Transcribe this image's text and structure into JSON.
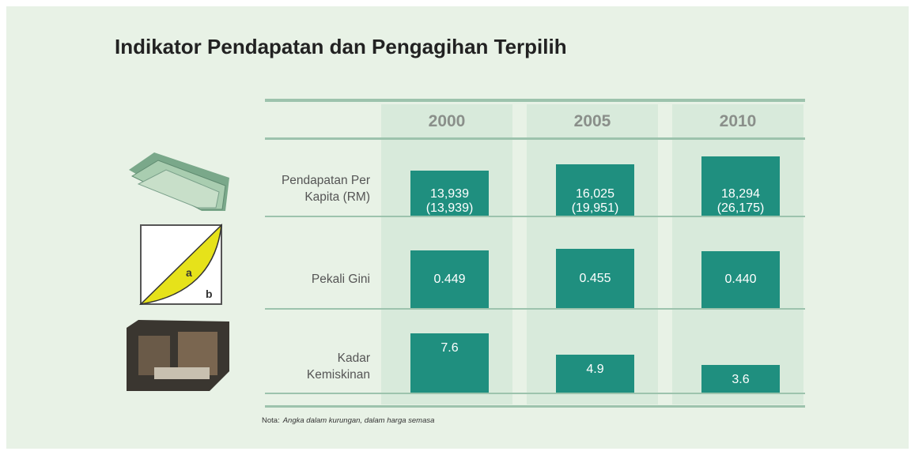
{
  "title": "Indikator Pendapatan dan Pengagihan Terpilih",
  "table": {
    "headers": [
      "2000",
      "2005",
      "2010"
    ],
    "rows": [
      {
        "label": [
          "Pendapatan Per",
          "Kapita (RM)"
        ],
        "cells": [
          [
            "13,939",
            "(13,939)"
          ],
          [
            "16,025",
            "(19,951)"
          ],
          [
            "18,294",
            "(26,175)"
          ]
        ]
      },
      {
        "label": [
          "Pekali Gini"
        ],
        "cells": [
          [
            "0.449"
          ],
          [
            "0.455"
          ],
          [
            "0.440"
          ]
        ]
      },
      {
        "label": [
          "Kadar",
          "Kemiskinan"
        ],
        "cells": [
          [
            "7.6"
          ],
          [
            "4.9"
          ],
          [
            "3.6"
          ]
        ]
      }
    ]
  },
  "gini_icon": {
    "a": "a",
    "b": "b"
  },
  "note": {
    "label": "Nota:",
    "text": "Angka dalam kurungan, dalam harga semasa"
  }
}
